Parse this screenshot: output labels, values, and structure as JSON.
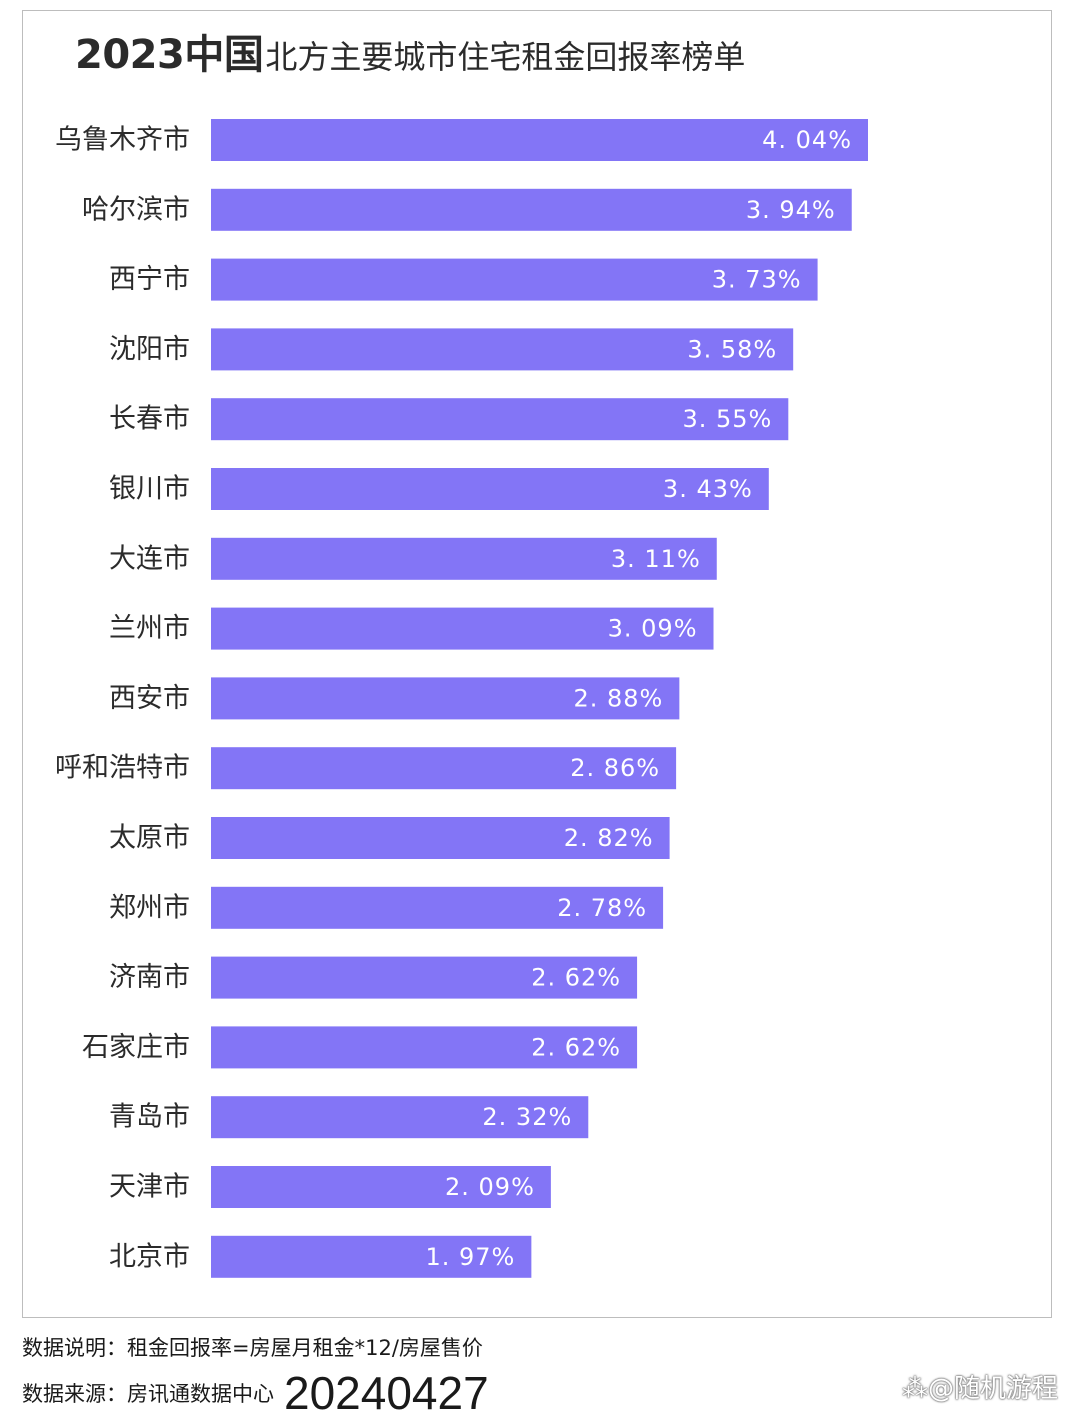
{
  "chart_data": {
    "type": "bar",
    "orientation": "horizontal",
    "title_main": "2023中国",
    "title_sub": "北方主要城市住宅租金回报率榜单",
    "categories": [
      "乌鲁木齐市",
      "哈尔滨市",
      "西宁市",
      "沈阳市",
      "长春市",
      "银川市",
      "大连市",
      "兰州市",
      "西安市",
      "呼和浩特市",
      "太原市",
      "郑州市",
      "济南市",
      "石家庄市",
      "青岛市",
      "天津市",
      "北京市"
    ],
    "values": [
      4.04,
      3.94,
      3.73,
      3.58,
      3.55,
      3.43,
      3.11,
      3.09,
      2.88,
      2.86,
      2.82,
      2.78,
      2.62,
      2.62,
      2.32,
      2.09,
      1.97
    ],
    "value_labels": [
      "4. 04%",
      "3. 94%",
      "3. 73%",
      "3. 58%",
      "3. 55%",
      "3. 43%",
      "3. 11%",
      "3. 09%",
      "2. 88%",
      "2. 86%",
      "2. 82%",
      "2. 78%",
      "2. 62%",
      "2. 62%",
      "2. 32%",
      "2. 09%",
      "1. 97%"
    ],
    "xlim": [
      0,
      4.04
    ],
    "grid": false,
    "legend": "none",
    "bar_color": "#8375f6"
  },
  "footer": {
    "note": "数据说明：租金回报率=房屋月租金*12/房屋售价",
    "source_label": "数据来源：房讯通数据中心",
    "source_date": "20240427"
  },
  "watermark": "⁂@随机游程"
}
